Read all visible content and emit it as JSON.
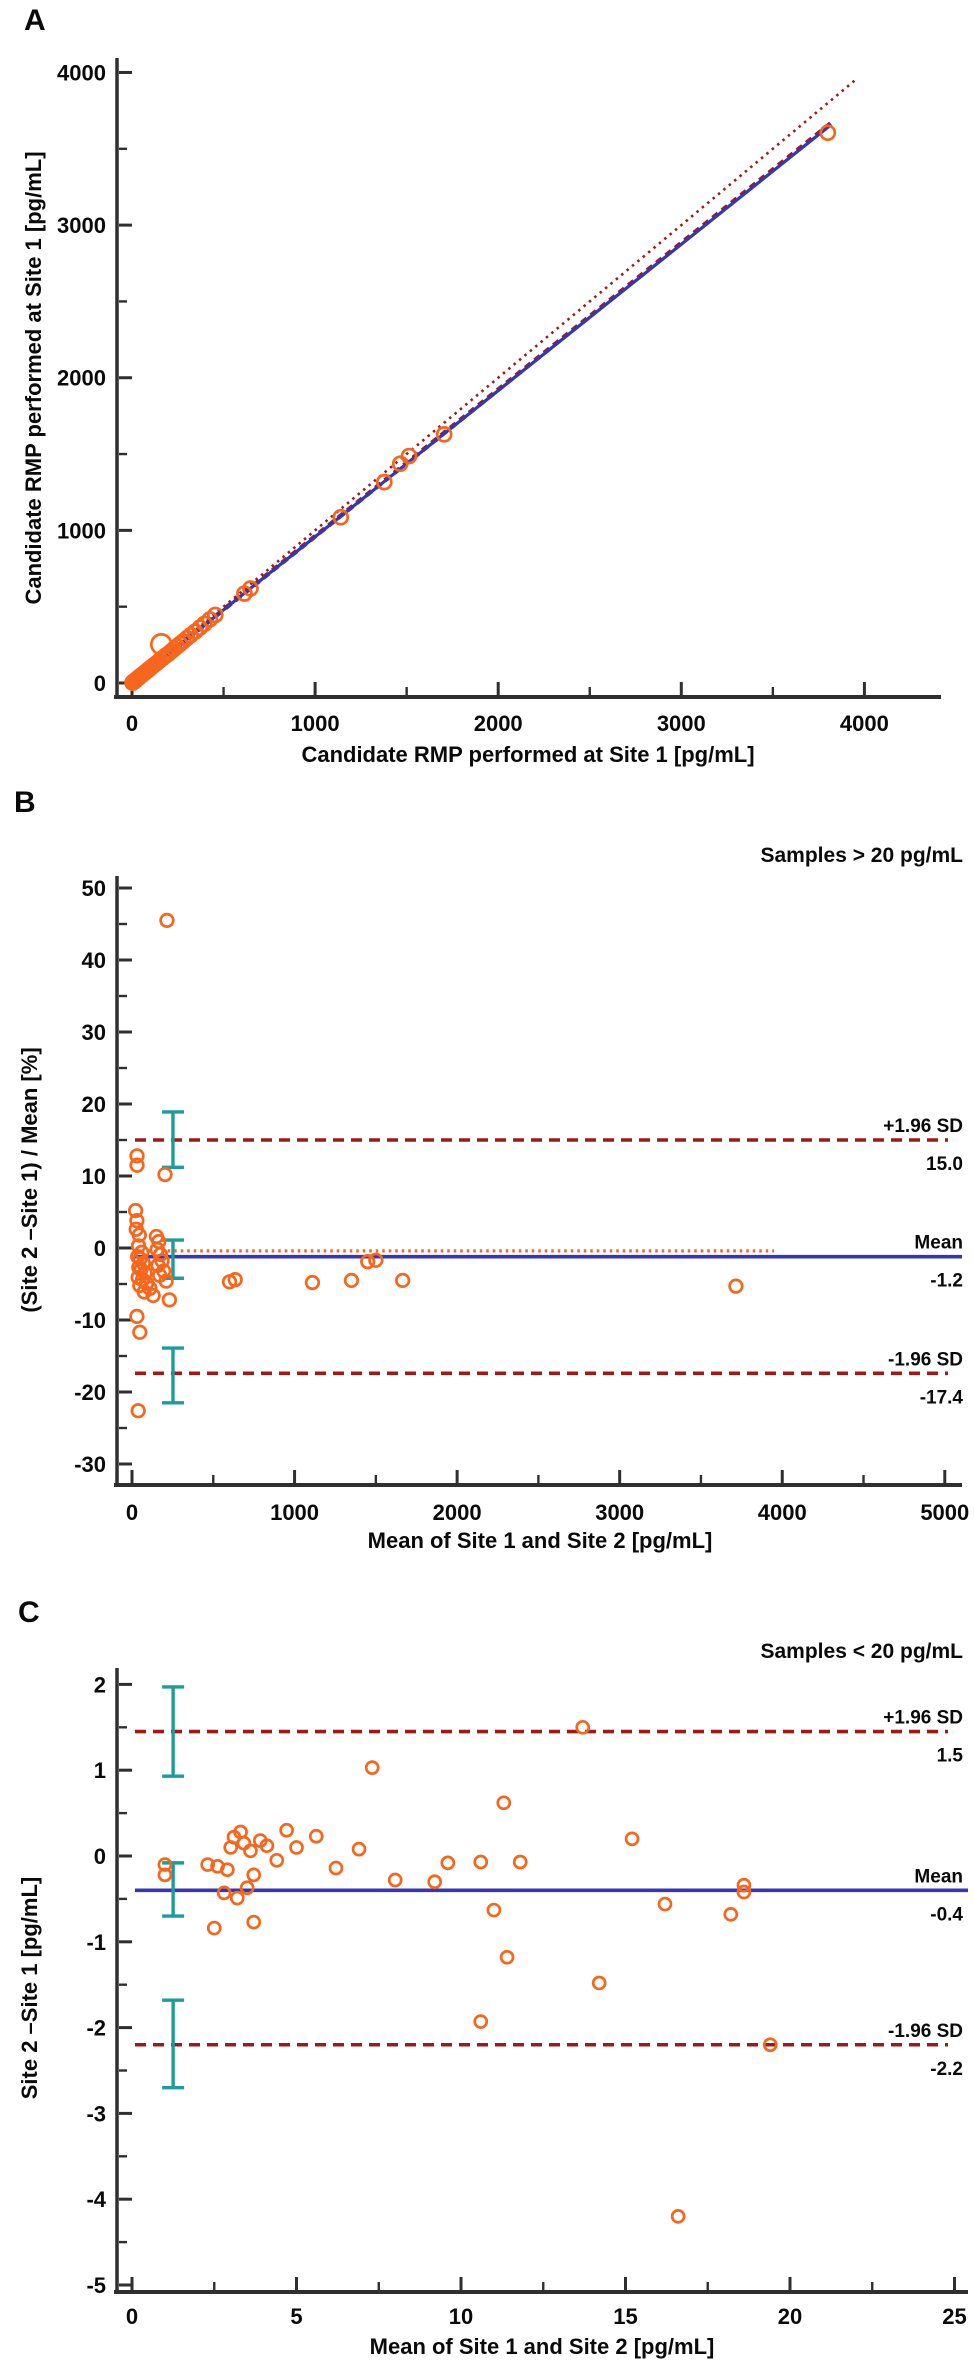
{
  "colors": {
    "orange": "#F6671D",
    "blue": "#3535B8",
    "dark_red": "#9C1A1A",
    "teal": "#1E9B9B",
    "axis": "#2F2F2F",
    "text": "#0a0a0a"
  },
  "chart_data": [
    {
      "type": "scatter",
      "panel": "A",
      "xlabel": "Candidate RMP performed at Site 1 [pg/mL]",
      "ylabel": "Candidate RMP performed at Site 1 [pg/mL]",
      "xlim": [
        0,
        4400
      ],
      "ylim": [
        0,
        4100
      ],
      "x_ticks": [
        0,
        1000,
        2000,
        3000,
        4000
      ],
      "y_ticks": [
        0,
        1000,
        2000,
        3000,
        4000
      ],
      "grid": false,
      "identity_line": {
        "style": "dotted",
        "x0": 0,
        "y0": 0,
        "x1": 3950,
        "y1": 3950
      },
      "regression_line": {
        "style": "solid",
        "x0": 0,
        "y0": 0,
        "x1": 3820,
        "y1": 3660
      },
      "ci_line": {
        "style": "dashed",
        "x0": 0,
        "y0": 0,
        "x1": 3830,
        "y1": 3680
      },
      "points": [
        [
          3,
          2
        ],
        [
          5,
          5
        ],
        [
          8,
          7
        ],
        [
          10,
          10
        ],
        [
          13,
          12
        ],
        [
          16,
          15
        ],
        [
          20,
          19
        ],
        [
          24,
          23
        ],
        [
          28,
          27
        ],
        [
          33,
          32
        ],
        [
          38,
          37
        ],
        [
          44,
          43
        ],
        [
          50,
          49
        ],
        [
          57,
          55
        ],
        [
          65,
          63
        ],
        [
          74,
          72
        ],
        [
          84,
          82
        ],
        [
          95,
          93
        ],
        [
          107,
          104
        ],
        [
          120,
          117
        ],
        [
          135,
          131
        ],
        [
          150,
          146
        ],
        [
          160,
          253,
          10
        ],
        [
          170,
          166
        ],
        [
          185,
          180
        ],
        [
          200,
          193
        ],
        [
          215,
          208
        ],
        [
          230,
          224
        ],
        [
          246,
          240
        ],
        [
          262,
          256
        ],
        [
          280,
          273
        ],
        [
          300,
          294
        ],
        [
          320,
          313
        ],
        [
          345,
          337
        ],
        [
          370,
          362
        ],
        [
          395,
          387
        ],
        [
          425,
          417
        ],
        [
          455,
          446
        ],
        [
          614,
          586
        ],
        [
          647,
          619
        ],
        [
          1140,
          1086
        ],
        [
          1378,
          1316
        ],
        [
          1465,
          1437
        ],
        [
          1513,
          1487
        ],
        [
          1705,
          1629
        ],
        [
          3800,
          3605
        ]
      ]
    },
    {
      "type": "scatter",
      "panel": "B",
      "annotation": "Samples > 20 pg/mL",
      "xlabel": "Mean of Site 1 and Site 2 [pg/mL]",
      "ylabel": "(Site 2 –Site 1) / Mean [%]",
      "xlim": [
        0,
        5150
      ],
      "ylim": [
        -30,
        50
      ],
      "x_ticks": [
        0,
        1000,
        2000,
        3000,
        4000,
        5000
      ],
      "y_ticks": [
        -30,
        -20,
        -10,
        0,
        10,
        20,
        30,
        40,
        50
      ],
      "grid": false,
      "hlines": [
        {
          "name": "+1.96 SD",
          "value": "15.0",
          "y": 15.0,
          "style": "dashed",
          "color": "dark_red"
        },
        {
          "name": "Mean",
          "value": "-1.2",
          "y": -1.2,
          "style": "solid",
          "color": "blue"
        },
        {
          "name": "-1.96 SD",
          "value": "-17.4",
          "y": -17.4,
          "style": "dashed",
          "color": "dark_red"
        }
      ],
      "bias_line": {
        "y": -0.4,
        "x0": 20,
        "x1": 3950,
        "style": "dotted",
        "color": "orange"
      },
      "error_bars": [
        {
          "x": 252,
          "lo": 11.2,
          "hi": 18.9
        },
        {
          "x": 252,
          "lo": -4.2,
          "hi": 1.1
        },
        {
          "x": 252,
          "lo": -21.5,
          "hi": -13.9
        }
      ],
      "points": [
        [
          215,
          45.5
        ],
        [
          31,
          12.8
        ],
        [
          31,
          11.5
        ],
        [
          203,
          10.2
        ],
        [
          22,
          5.2
        ],
        [
          30,
          3.8
        ],
        [
          26,
          2.6
        ],
        [
          45,
          1.8
        ],
        [
          150,
          1.6
        ],
        [
          165,
          0.9
        ],
        [
          40,
          0.3
        ],
        [
          155,
          -0.2
        ],
        [
          60,
          -0.6
        ],
        [
          175,
          -0.9
        ],
        [
          35,
          -1.2
        ],
        [
          50,
          -1.5
        ],
        [
          185,
          -1.8
        ],
        [
          70,
          -2.1
        ],
        [
          160,
          -2.4
        ],
        [
          42,
          -2.7
        ],
        [
          55,
          -3.0
        ],
        [
          195,
          -3.2
        ],
        [
          80,
          -3.5
        ],
        [
          170,
          -3.8
        ],
        [
          38,
          -4.1
        ],
        [
          65,
          -4.4
        ],
        [
          210,
          -4.6
        ],
        [
          90,
          -4.9
        ],
        [
          48,
          -5.2
        ],
        [
          110,
          -5.6
        ],
        [
          75,
          -6.1
        ],
        [
          130,
          -6.6
        ],
        [
          230,
          -7.2
        ],
        [
          30,
          -9.5
        ],
        [
          48,
          -11.7
        ],
        [
          38,
          -22.6
        ],
        [
          600,
          -4.7
        ],
        [
          635,
          -4.4
        ],
        [
          1110,
          -4.8
        ],
        [
          1350,
          -4.5
        ],
        [
          1450,
          -1.9
        ],
        [
          1500,
          -1.7
        ],
        [
          1665,
          -4.5
        ],
        [
          3715,
          -5.3
        ]
      ]
    },
    {
      "type": "scatter",
      "panel": "C",
      "annotation": "Samples < 20 pg/mL",
      "xlabel": "Mean of Site 1 and Site 2 [pg/mL]",
      "ylabel": "Site 2 –Site 1 [pg/mL]",
      "xlim": [
        0,
        25.2
      ],
      "ylim": [
        -5,
        2
      ],
      "x_ticks": [
        0,
        5,
        10,
        15,
        20,
        25
      ],
      "y_ticks": [
        -5,
        -4,
        -3,
        -2,
        -1,
        0,
        1,
        2
      ],
      "grid": false,
      "hlines": [
        {
          "name": "+1.96 SD",
          "value": "1.5",
          "y": 1.45,
          "style": "dashed",
          "color": "dark_red"
        },
        {
          "name": "Mean",
          "value": "-0.4",
          "y": -0.4,
          "style": "solid",
          "color": "blue"
        },
        {
          "name": "-1.96 SD",
          "value": "-2.2",
          "y": -2.2,
          "style": "dashed",
          "color": "dark_red"
        }
      ],
      "error_bars": [
        {
          "x": 1.25,
          "lo": 0.93,
          "hi": 1.97
        },
        {
          "x": 1.25,
          "lo": -0.7,
          "hi": -0.08
        },
        {
          "x": 1.25,
          "lo": -2.7,
          "hi": -1.68
        }
      ],
      "points": [
        [
          1.0,
          -0.1
        ],
        [
          1.0,
          -0.22
        ],
        [
          2.3,
          -0.1
        ],
        [
          2.6,
          -0.12
        ],
        [
          2.9,
          -0.16
        ],
        [
          2.8,
          -0.43
        ],
        [
          3.2,
          -0.49
        ],
        [
          3.5,
          -0.37
        ],
        [
          3.7,
          -0.22
        ],
        [
          2.5,
          -0.84
        ],
        [
          3.7,
          -0.77
        ],
        [
          3.0,
          0.1
        ],
        [
          3.1,
          0.22
        ],
        [
          3.3,
          0.28
        ],
        [
          3.4,
          0.15
        ],
        [
          3.6,
          0.06
        ],
        [
          3.9,
          0.18
        ],
        [
          4.1,
          0.12
        ],
        [
          4.4,
          -0.05
        ],
        [
          4.7,
          0.3
        ],
        [
          5.0,
          0.1
        ],
        [
          5.6,
          0.23
        ],
        [
          6.2,
          -0.14
        ],
        [
          6.9,
          0.08
        ],
        [
          7.3,
          1.03
        ],
        [
          8.0,
          -0.28
        ],
        [
          9.2,
          -0.3
        ],
        [
          9.6,
          -0.08
        ],
        [
          10.6,
          -0.07
        ],
        [
          11.8,
          -0.07
        ],
        [
          11.0,
          -0.63
        ],
        [
          11.3,
          0.62
        ],
        [
          11.4,
          -1.18
        ],
        [
          10.6,
          -1.93
        ],
        [
          13.7,
          1.5
        ],
        [
          14.2,
          -1.48
        ],
        [
          15.2,
          0.2
        ],
        [
          16.2,
          -0.56
        ],
        [
          16.6,
          -4.2
        ],
        [
          18.2,
          -0.68
        ],
        [
          18.6,
          -0.34
        ],
        [
          18.6,
          -0.42
        ],
        [
          19.4,
          -2.2
        ]
      ]
    }
  ]
}
